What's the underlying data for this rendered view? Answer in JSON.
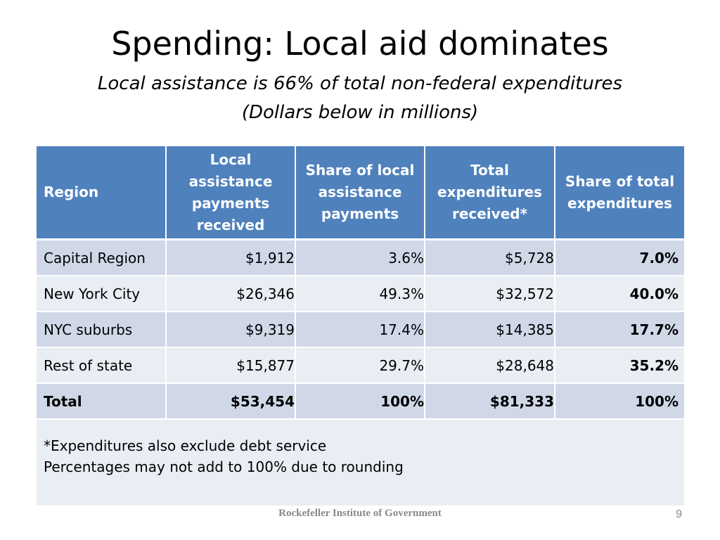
{
  "slide": {
    "title": "Spending: Local aid dominates",
    "subtitle_line1": "Local assistance is 66% of total non-federal expenditures",
    "subtitle_line2": "(Dollars below in millions)"
  },
  "table": {
    "headers": [
      "Region",
      "Local assistance payments received",
      "Share of local assistance payments",
      "Total expenditures received*",
      "Share of total expenditures"
    ],
    "rows": [
      [
        "Capital Region",
        "$1,912",
        "3.6%",
        "$5,728",
        "7.0%"
      ],
      [
        "New York City",
        "$26,346",
        "49.3%",
        "$32,572",
        "40.0%"
      ],
      [
        "NYC suburbs",
        "$9,319",
        "17.4%",
        "$14,385",
        "17.7%"
      ],
      [
        "Rest of state",
        "$15,877",
        "29.7%",
        "$28,648",
        "35.2%"
      ],
      [
        "Total",
        "$53,454",
        "100%",
        "$81,333",
        "100%"
      ]
    ],
    "notes": [
      "*Expenditures also exclude debt service",
      "Percentages may not add to 100% due to rounding"
    ]
  },
  "footer": {
    "institution": "Rockefeller Institute of Government",
    "page_number": "9"
  },
  "colors": {
    "header_blue": "#4f81bd",
    "row_dark": "#d0d8e8",
    "row_light": "#e9edf4",
    "footer_gray": "#898989"
  }
}
